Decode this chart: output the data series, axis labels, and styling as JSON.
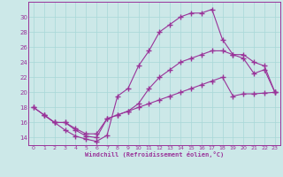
{
  "xlabel": "Windchill (Refroidissement éolien,°C)",
  "bg_color": "#cce8e8",
  "line_color": "#993399",
  "xlim": [
    -0.5,
    23.5
  ],
  "ylim": [
    13.0,
    32.0
  ],
  "yticks": [
    14,
    16,
    18,
    20,
    22,
    24,
    26,
    28,
    30
  ],
  "xticks": [
    0,
    1,
    2,
    3,
    4,
    5,
    6,
    7,
    8,
    9,
    10,
    11,
    12,
    13,
    14,
    15,
    16,
    17,
    18,
    19,
    20,
    21,
    22,
    23
  ],
  "series1_x": [
    0,
    1,
    2,
    3,
    4,
    5,
    6,
    7,
    8,
    9,
    10,
    11,
    12,
    13,
    14,
    15,
    16,
    17,
    18,
    19,
    20,
    21,
    22,
    23
  ],
  "series1_y": [
    18.0,
    17.0,
    16.0,
    15.0,
    14.2,
    13.8,
    13.5,
    14.3,
    19.5,
    20.5,
    23.5,
    25.5,
    28.0,
    29.0,
    30.0,
    30.5,
    30.5,
    31.0,
    27.0,
    25.0,
    24.5,
    22.5,
    23.0,
    20.0
  ],
  "series2_x": [
    0,
    1,
    2,
    3,
    4,
    5,
    6,
    7,
    8,
    9,
    10,
    11,
    12,
    13,
    14,
    15,
    16,
    17,
    18,
    19,
    20,
    21,
    22,
    23
  ],
  "series2_y": [
    18.0,
    17.0,
    16.0,
    16.0,
    15.2,
    14.5,
    14.5,
    16.5,
    17.0,
    17.5,
    18.0,
    18.5,
    19.0,
    19.5,
    20.0,
    20.5,
    21.0,
    21.5,
    22.0,
    19.5,
    19.8,
    19.8,
    19.9,
    20.0
  ],
  "series3_x": [
    1,
    2,
    3,
    4,
    5,
    6,
    7,
    8,
    9,
    10,
    11,
    12,
    13,
    14,
    15,
    16,
    17,
    18,
    19,
    20,
    21,
    22,
    23
  ],
  "series3_y": [
    17.0,
    16.0,
    16.0,
    15.0,
    14.2,
    14.0,
    16.5,
    17.0,
    17.5,
    18.5,
    20.5,
    22.0,
    23.0,
    24.0,
    24.5,
    25.0,
    25.5,
    25.5,
    25.0,
    25.0,
    24.0,
    23.5,
    20.0
  ]
}
